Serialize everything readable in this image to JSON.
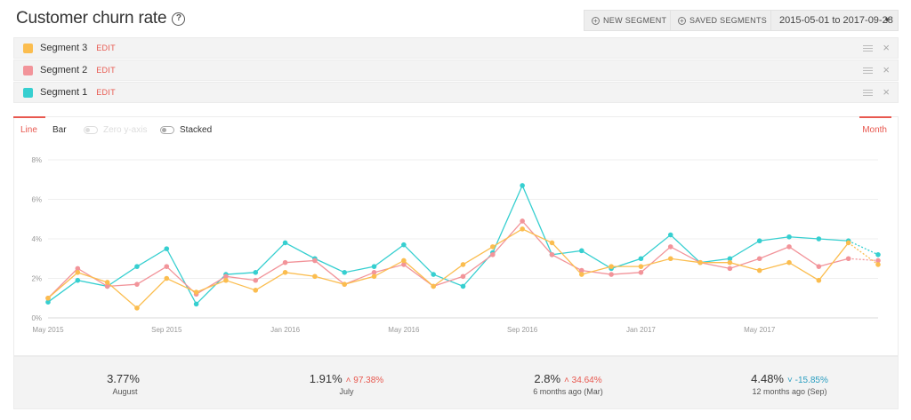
{
  "header": {
    "title": "Customer churn rate",
    "help_icon": "?",
    "new_segment_label": "NEW SEGMENT",
    "saved_segments_label": "SAVED SEGMENTS",
    "date_range": "2015-05-01 to 2017-09-28"
  },
  "segments": [
    {
      "name": "Segment 3",
      "edit": "EDIT",
      "color": "#fbbd4f"
    },
    {
      "name": "Segment 2",
      "edit": "EDIT",
      "color": "#f2949a"
    },
    {
      "name": "Segment 1",
      "edit": "EDIT",
      "color": "#36cfd0"
    }
  ],
  "controls": {
    "line_tab": "Line",
    "bar_tab": "Bar",
    "zero_y_axis": "Zero y-axis",
    "stacked": "Stacked",
    "interval": "Month"
  },
  "chart_data": {
    "type": "line",
    "x": [
      "2015-05",
      "2015-06",
      "2015-07",
      "2015-08",
      "2015-09",
      "2015-10",
      "2015-11",
      "2015-12",
      "2016-01",
      "2016-02",
      "2016-03",
      "2016-04",
      "2016-05",
      "2016-06",
      "2016-07",
      "2016-08",
      "2016-09",
      "2016-10",
      "2016-11",
      "2016-12",
      "2017-01",
      "2017-02",
      "2017-03",
      "2017-04",
      "2017-05",
      "2017-06",
      "2017-07",
      "2017-08",
      "2017-09"
    ],
    "x_tick_labels": [
      "May 2015",
      "Sep 2015",
      "Jan 2016",
      "May 2016",
      "Sep 2016",
      "Jan 2017",
      "May 2017"
    ],
    "x_tick_values": [
      "2015-05",
      "2015-09",
      "2016-01",
      "2016-05",
      "2016-09",
      "2017-01",
      "2017-05"
    ],
    "y_tick_labels": [
      "0%",
      "2%",
      "4%",
      "6%",
      "8%"
    ],
    "y_tick_values": [
      0,
      2,
      4,
      6,
      8
    ],
    "ylim": [
      0,
      8
    ],
    "grid": true,
    "partial_last_point": true,
    "series": [
      {
        "name": "Segment 1",
        "color": "#36cfd0",
        "values": [
          0.8,
          1.9,
          1.6,
          2.6,
          3.5,
          0.7,
          2.2,
          2.3,
          3.8,
          3.0,
          2.3,
          2.6,
          3.7,
          2.2,
          1.6,
          3.3,
          6.7,
          3.2,
          3.4,
          2.5,
          3.0,
          4.2,
          2.8,
          3.0,
          3.9,
          4.1,
          4.0,
          3.9,
          3.2
        ]
      },
      {
        "name": "Segment 2",
        "color": "#f2949a",
        "values": [
          1.0,
          2.5,
          1.6,
          1.7,
          2.6,
          1.2,
          2.1,
          1.9,
          2.8,
          2.9,
          1.7,
          2.3,
          2.7,
          1.6,
          2.1,
          3.2,
          4.9,
          3.2,
          2.4,
          2.2,
          2.3,
          3.6,
          2.8,
          2.5,
          3.0,
          3.6,
          2.6,
          3.0,
          2.9
        ]
      },
      {
        "name": "Segment 3",
        "color": "#fbbd4f",
        "values": [
          1.0,
          2.3,
          1.8,
          0.5,
          2.0,
          1.3,
          1.9,
          1.4,
          2.3,
          2.1,
          1.7,
          2.1,
          2.9,
          1.6,
          2.7,
          3.6,
          4.5,
          3.8,
          2.2,
          2.6,
          2.6,
          3.0,
          2.8,
          2.8,
          2.4,
          2.8,
          1.9,
          3.8,
          2.7
        ]
      }
    ]
  },
  "stats": [
    {
      "value": "3.77%",
      "change": "",
      "direction": "",
      "label": "August"
    },
    {
      "value": "1.91%",
      "change": "97.38%",
      "direction": "up",
      "label": "July"
    },
    {
      "value": "2.8%",
      "change": "34.64%",
      "direction": "up",
      "label": "6 months ago (Mar)"
    },
    {
      "value": "4.48%",
      "change": "-15.85%",
      "direction": "down",
      "label": "12 months ago (Sep)"
    }
  ],
  "colors": {
    "accent": "#e8584f",
    "positive_change": "#e8584f",
    "negative_change": "#2a9ec1"
  }
}
